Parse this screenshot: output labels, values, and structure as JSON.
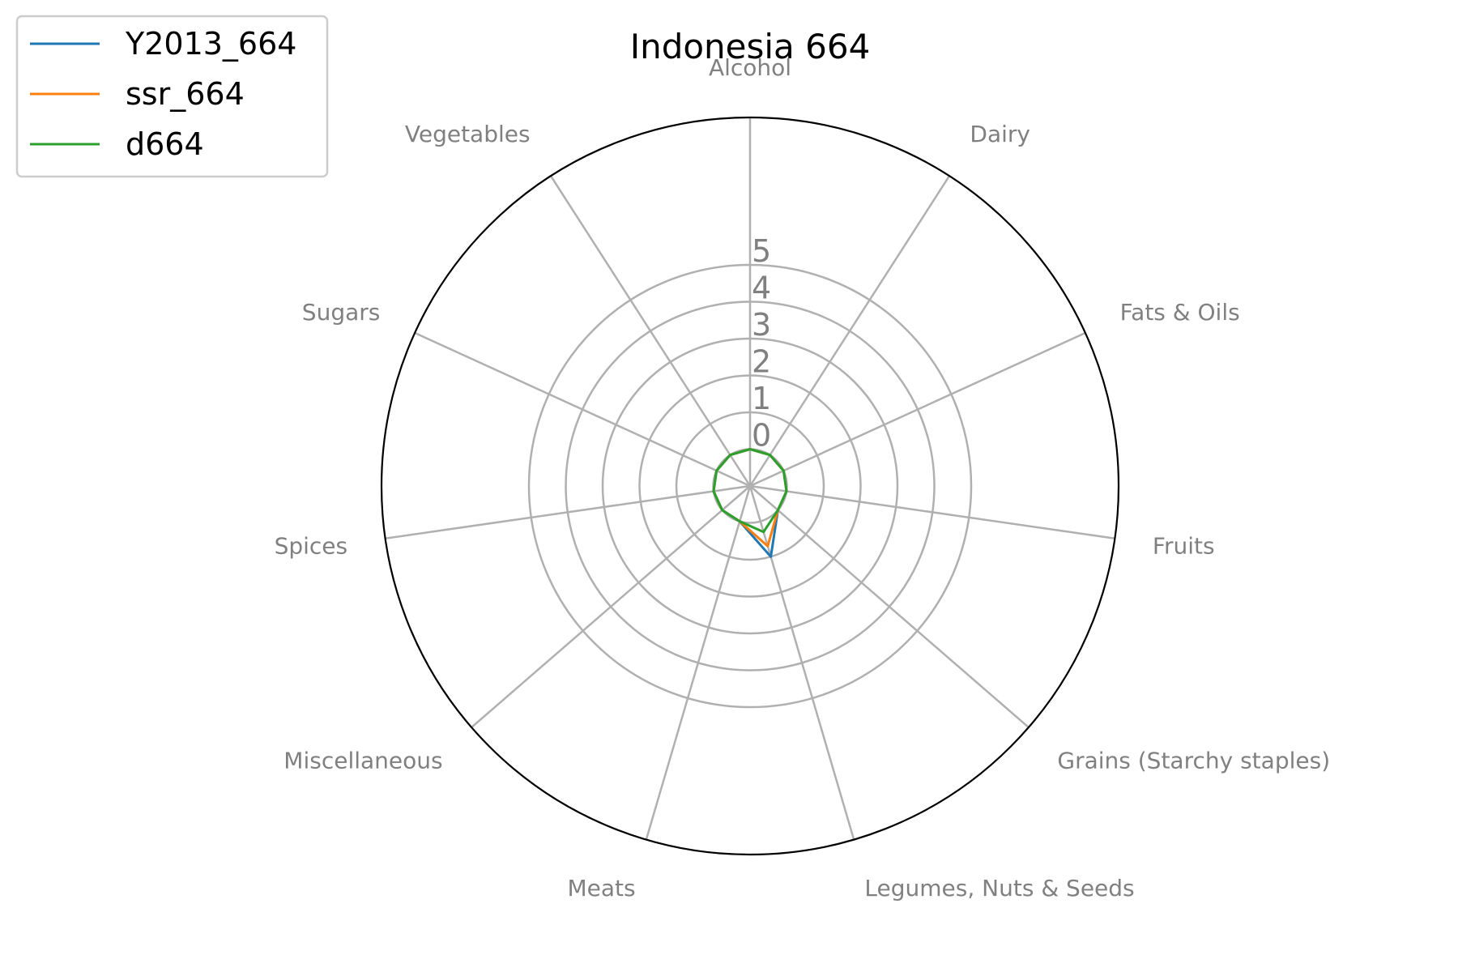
{
  "chart_data": {
    "type": "radar",
    "title": "Indonesia 664",
    "categories": [
      "Alcohol",
      "Dairy",
      "Fats & Oils",
      "Fruits",
      "Grains (Starchy staples)",
      "Legumes, Nuts & Seeds",
      "Meats",
      "Miscellaneous",
      "Spices",
      "Sugars",
      "Vegetables"
    ],
    "radial_ticks": [
      "0",
      "1",
      "2",
      "3",
      "4",
      "5"
    ],
    "rlim": [
      -1,
      9
    ],
    "grid": true,
    "legend_position": "top-left",
    "series": [
      {
        "name": "Y2013_664",
        "color": "#1f77b4",
        "values": [
          0,
          0,
          0,
          0,
          0,
          1.0,
          0,
          0,
          0,
          0,
          0
        ]
      },
      {
        "name": "ssr_664",
        "color": "#ff7f0e",
        "values": [
          0,
          0,
          0,
          0,
          0,
          0.7,
          0,
          0,
          0,
          0,
          0
        ]
      },
      {
        "name": "d664",
        "color": "#2ca02c",
        "values": [
          0,
          0,
          0,
          0,
          0,
          0.3,
          0,
          0,
          0,
          0,
          0
        ]
      }
    ]
  }
}
